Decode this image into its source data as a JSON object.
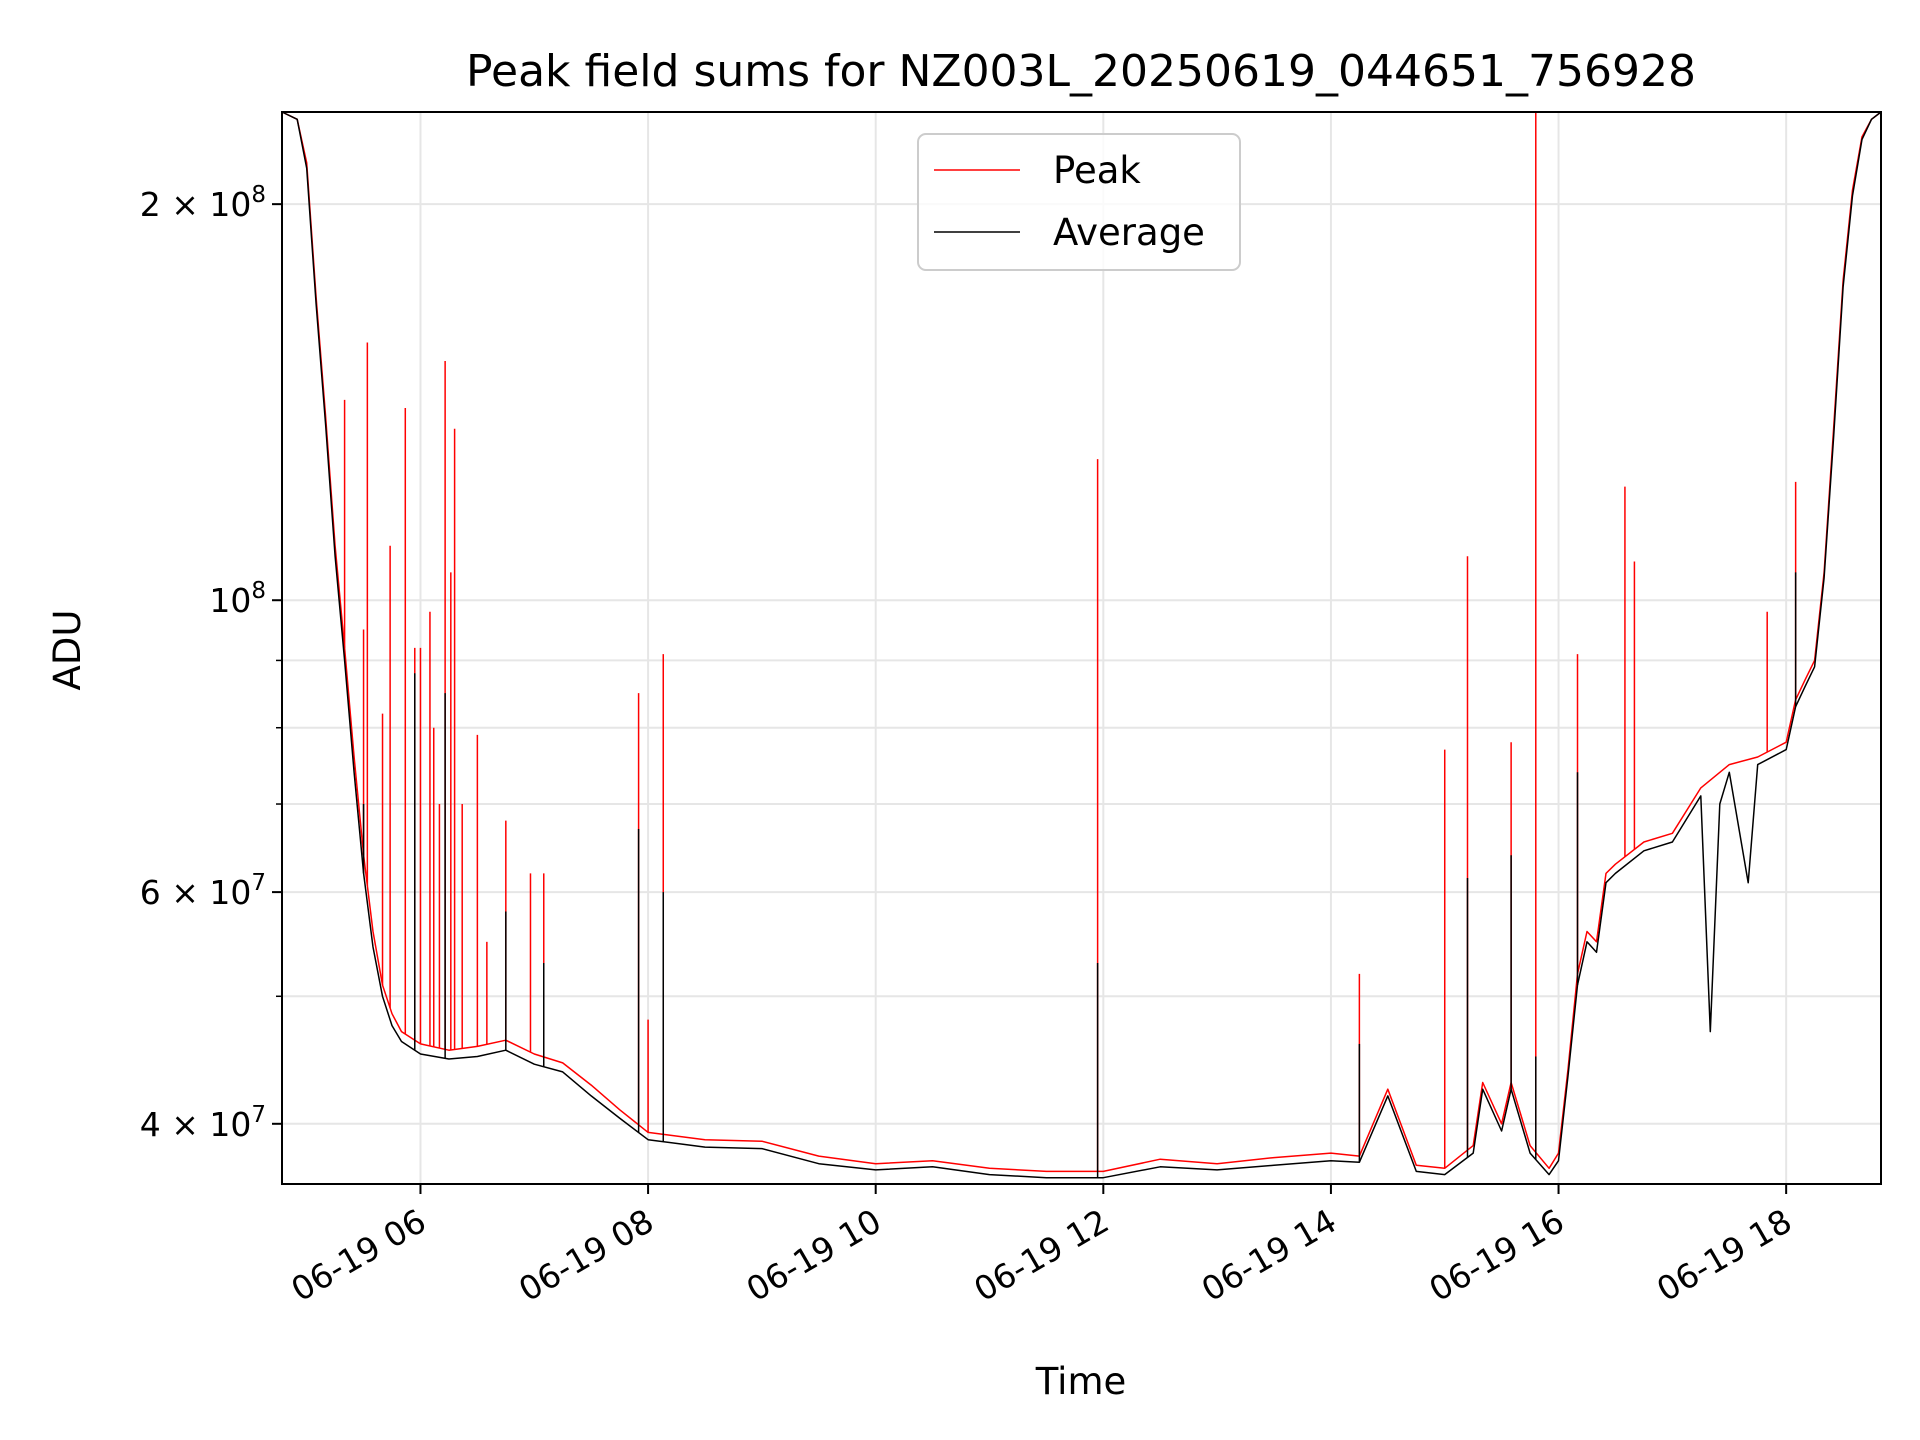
{
  "chart_data": {
    "type": "line",
    "title": "Peak field sums for NZ003L_20250619_044651_756928",
    "xlabel": "Time",
    "ylabel": "ADU",
    "y_scale": "log",
    "ylim": [
      36000000,
      235000000
    ],
    "xlim": [
      "2025-06-19 04:47",
      "2025-06-19 18:50"
    ],
    "grid": true,
    "legend_position": "upper center",
    "x_ticks": [
      {
        "value": "2025-06-19 06:00",
        "label": "06-19 06"
      },
      {
        "value": "2025-06-19 08:00",
        "label": "06-19 08"
      },
      {
        "value": "2025-06-19 10:00",
        "label": "06-19 10"
      },
      {
        "value": "2025-06-19 12:00",
        "label": "06-19 12"
      },
      {
        "value": "2025-06-19 14:00",
        "label": "06-19 14"
      },
      {
        "value": "2025-06-19 16:00",
        "label": "06-19 16"
      },
      {
        "value": "2025-06-19 18:00",
        "label": "06-19 18"
      }
    ],
    "y_ticks": [
      {
        "value": 40000000,
        "base": "4 × 10",
        "exp": "7"
      },
      {
        "value": 60000000,
        "base": "6 × 10",
        "exp": "7"
      },
      {
        "value": 100000000,
        "base": "10",
        "exp": "8"
      },
      {
        "value": 200000000,
        "base": "2 × 10",
        "exp": "8"
      }
    ],
    "y_minor_ticks": [
      50000000,
      70000000,
      80000000,
      90000000
    ],
    "series": [
      {
        "name": "Peak",
        "color": "#ff0000",
        "points": [
          [
            "2025-06-19 04:47",
            235000000
          ],
          [
            "2025-06-19 04:55",
            232000000
          ],
          [
            "2025-06-19 05:00",
            215000000
          ],
          [
            "2025-06-19 05:05",
            170000000
          ],
          [
            "2025-06-19 05:10",
            138000000
          ],
          [
            "2025-06-19 05:15",
            110000000
          ],
          [
            "2025-06-19 05:20",
            92000000
          ],
          [
            "2025-06-19 05:25",
            76000000
          ],
          [
            "2025-06-19 05:30",
            64000000
          ],
          [
            "2025-06-19 05:35",
            56000000
          ],
          [
            "2025-06-19 05:40",
            51000000
          ],
          [
            "2025-06-19 05:45",
            48500000
          ],
          [
            "2025-06-19 05:50",
            47000000
          ],
          [
            "2025-06-19 06:00",
            46000000
          ],
          [
            "2025-06-19 06:15",
            45500000
          ],
          [
            "2025-06-19 06:30",
            45800000
          ],
          [
            "2025-06-19 06:45",
            46300000
          ],
          [
            "2025-06-19 07:00",
            45200000
          ],
          [
            "2025-06-19 07:15",
            44500000
          ],
          [
            "2025-06-19 07:30",
            42800000
          ],
          [
            "2025-06-19 07:45",
            41000000
          ],
          [
            "2025-06-19 08:00",
            39400000
          ],
          [
            "2025-06-19 08:30",
            38900000
          ],
          [
            "2025-06-19 09:00",
            38800000
          ],
          [
            "2025-06-19 09:30",
            37800000
          ],
          [
            "2025-06-19 10:00",
            37300000
          ],
          [
            "2025-06-19 10:30",
            37500000
          ],
          [
            "2025-06-19 11:00",
            37000000
          ],
          [
            "2025-06-19 11:30",
            36800000
          ],
          [
            "2025-06-19 12:00",
            36800000
          ],
          [
            "2025-06-19 12:30",
            37600000
          ],
          [
            "2025-06-19 13:00",
            37300000
          ],
          [
            "2025-06-19 13:30",
            37700000
          ],
          [
            "2025-06-19 14:00",
            38000000
          ],
          [
            "2025-06-19 14:15",
            37800000
          ],
          [
            "2025-06-19 14:30",
            42500000
          ],
          [
            "2025-06-19 14:45",
            37200000
          ],
          [
            "2025-06-19 15:00",
            37000000
          ],
          [
            "2025-06-19 15:15",
            38500000
          ],
          [
            "2025-06-19 15:20",
            43000000
          ],
          [
            "2025-06-19 15:30",
            40000000
          ],
          [
            "2025-06-19 15:35",
            43000000
          ],
          [
            "2025-06-19 15:45",
            38500000
          ],
          [
            "2025-06-19 15:55",
            37000000
          ],
          [
            "2025-06-19 16:00",
            38000000
          ],
          [
            "2025-06-19 16:05",
            44000000
          ],
          [
            "2025-06-19 16:10",
            52000000
          ],
          [
            "2025-06-19 16:15",
            56000000
          ],
          [
            "2025-06-19 16:20",
            55000000
          ],
          [
            "2025-06-19 16:25",
            62000000
          ],
          [
            "2025-06-19 16:30",
            63000000
          ],
          [
            "2025-06-19 16:45",
            65500000
          ],
          [
            "2025-06-19 17:00",
            66500000
          ],
          [
            "2025-06-19 17:15",
            72000000
          ],
          [
            "2025-06-19 17:30",
            75000000
          ],
          [
            "2025-06-19 17:45",
            76000000
          ],
          [
            "2025-06-19 18:00",
            78000000
          ],
          [
            "2025-06-19 18:05",
            84000000
          ],
          [
            "2025-06-19 18:10",
            87000000
          ],
          [
            "2025-06-19 18:15",
            90000000
          ],
          [
            "2025-06-19 18:20",
            105000000
          ],
          [
            "2025-06-19 18:25",
            135000000
          ],
          [
            "2025-06-19 18:30",
            175000000
          ],
          [
            "2025-06-19 18:35",
            205000000
          ],
          [
            "2025-06-19 18:40",
            225000000
          ],
          [
            "2025-06-19 18:45",
            232000000
          ],
          [
            "2025-06-19 18:50",
            235000000
          ]
        ],
        "spikes": [
          [
            "2025-06-19 05:20",
            142000000
          ],
          [
            "2025-06-19 05:30",
            95000000
          ],
          [
            "2025-06-19 05:32",
            157000000
          ],
          [
            "2025-06-19 05:40",
            82000000
          ],
          [
            "2025-06-19 05:44",
            110000000
          ],
          [
            "2025-06-19 05:52",
            140000000
          ],
          [
            "2025-06-19 05:57",
            92000000
          ],
          [
            "2025-06-19 06:00",
            92000000
          ],
          [
            "2025-06-19 06:05",
            98000000
          ],
          [
            "2025-06-19 06:07",
            80000000
          ],
          [
            "2025-06-19 06:10",
            70000000
          ],
          [
            "2025-06-19 06:13",
            152000000
          ],
          [
            "2025-06-19 06:16",
            105000000
          ],
          [
            "2025-06-19 06:18",
            135000000
          ],
          [
            "2025-06-19 06:22",
            70000000
          ],
          [
            "2025-06-19 06:30",
            79000000
          ],
          [
            "2025-06-19 06:35",
            55000000
          ],
          [
            "2025-06-19 06:45",
            68000000
          ],
          [
            "2025-06-19 06:58",
            62000000
          ],
          [
            "2025-06-19 07:05",
            62000000
          ],
          [
            "2025-06-19 07:55",
            85000000
          ],
          [
            "2025-06-19 08:00",
            48000000
          ],
          [
            "2025-06-19 08:08",
            91000000
          ],
          [
            "2025-06-19 11:57",
            128000000
          ],
          [
            "2025-06-19 14:15",
            52000000
          ],
          [
            "2025-06-19 15:00",
            77000000
          ],
          [
            "2025-06-19 15:12",
            108000000
          ],
          [
            "2025-06-19 15:35",
            78000000
          ],
          [
            "2025-06-19 15:48",
            235000000
          ],
          [
            "2025-06-19 16:10",
            91000000
          ],
          [
            "2025-06-19 16:35",
            122000000
          ],
          [
            "2025-06-19 16:40",
            107000000
          ],
          [
            "2025-06-19 17:50",
            98000000
          ],
          [
            "2025-06-19 18:05",
            123000000
          ]
        ]
      },
      {
        "name": "Average",
        "color": "#000000",
        "points": [
          [
            "2025-06-19 04:47",
            235000000
          ],
          [
            "2025-06-19 04:55",
            232000000
          ],
          [
            "2025-06-19 05:00",
            213000000
          ],
          [
            "2025-06-19 05:05",
            168000000
          ],
          [
            "2025-06-19 05:10",
            136000000
          ],
          [
            "2025-06-19 05:15",
            108000000
          ],
          [
            "2025-06-19 05:20",
            90000000
          ],
          [
            "2025-06-19 05:25",
            74000000
          ],
          [
            "2025-06-19 05:30",
            62000000
          ],
          [
            "2025-06-19 05:35",
            54500000
          ],
          [
            "2025-06-19 05:40",
            50000000
          ],
          [
            "2025-06-19 05:45",
            47500000
          ],
          [
            "2025-06-19 05:50",
            46200000
          ],
          [
            "2025-06-19 06:00",
            45200000
          ],
          [
            "2025-06-19 06:15",
            44800000
          ],
          [
            "2025-06-19 06:30",
            45000000
          ],
          [
            "2025-06-19 06:45",
            45500000
          ],
          [
            "2025-06-19 07:00",
            44400000
          ],
          [
            "2025-06-19 07:15",
            43800000
          ],
          [
            "2025-06-19 07:30",
            42000000
          ],
          [
            "2025-06-19 07:45",
            40400000
          ],
          [
            "2025-06-19 08:00",
            38900000
          ],
          [
            "2025-06-19 08:30",
            38400000
          ],
          [
            "2025-06-19 09:00",
            38300000
          ],
          [
            "2025-06-19 09:30",
            37300000
          ],
          [
            "2025-06-19 10:00",
            36900000
          ],
          [
            "2025-06-19 10:30",
            37100000
          ],
          [
            "2025-06-19 11:00",
            36600000
          ],
          [
            "2025-06-19 11:30",
            36400000
          ],
          [
            "2025-06-19 12:00",
            36400000
          ],
          [
            "2025-06-19 12:30",
            37100000
          ],
          [
            "2025-06-19 13:00",
            36900000
          ],
          [
            "2025-06-19 13:30",
            37200000
          ],
          [
            "2025-06-19 14:00",
            37500000
          ],
          [
            "2025-06-19 14:15",
            37400000
          ],
          [
            "2025-06-19 14:30",
            42000000
          ],
          [
            "2025-06-19 14:45",
            36800000
          ],
          [
            "2025-06-19 15:00",
            36600000
          ],
          [
            "2025-06-19 15:15",
            38000000
          ],
          [
            "2025-06-19 15:20",
            42500000
          ],
          [
            "2025-06-19 15:30",
            39500000
          ],
          [
            "2025-06-19 15:35",
            42500000
          ],
          [
            "2025-06-19 15:45",
            38000000
          ],
          [
            "2025-06-19 15:55",
            36600000
          ],
          [
            "2025-06-19 16:00",
            37500000
          ],
          [
            "2025-06-19 16:05",
            43500000
          ],
          [
            "2025-06-19 16:10",
            51000000
          ],
          [
            "2025-06-19 16:15",
            55000000
          ],
          [
            "2025-06-19 16:20",
            54000000
          ],
          [
            "2025-06-19 16:25",
            61000000
          ],
          [
            "2025-06-19 16:30",
            62000000
          ],
          [
            "2025-06-19 16:45",
            64500000
          ],
          [
            "2025-06-19 17:00",
            65500000
          ],
          [
            "2025-06-19 17:15",
            71000000
          ],
          [
            "2025-06-19 17:20",
            47000000
          ],
          [
            "2025-06-19 17:25",
            70000000
          ],
          [
            "2025-06-19 17:30",
            74000000
          ],
          [
            "2025-06-19 17:40",
            61000000
          ],
          [
            "2025-06-19 17:45",
            75000000
          ],
          [
            "2025-06-19 18:00",
            77000000
          ],
          [
            "2025-06-19 18:05",
            83000000
          ],
          [
            "2025-06-19 18:10",
            86000000
          ],
          [
            "2025-06-19 18:15",
            89000000
          ],
          [
            "2025-06-19 18:20",
            104000000
          ],
          [
            "2025-06-19 18:25",
            133000000
          ],
          [
            "2025-06-19 18:30",
            173000000
          ],
          [
            "2025-06-19 18:35",
            203000000
          ],
          [
            "2025-06-19 18:40",
            224000000
          ],
          [
            "2025-06-19 18:45",
            232000000
          ],
          [
            "2025-06-19 18:50",
            235000000
          ]
        ],
        "spikes": [
          [
            "2025-06-19 05:30",
            70000000
          ],
          [
            "2025-06-19 05:57",
            88000000
          ],
          [
            "2025-06-19 06:13",
            85000000
          ],
          [
            "2025-06-19 06:45",
            58000000
          ],
          [
            "2025-06-19 07:05",
            53000000
          ],
          [
            "2025-06-19 07:55",
            67000000
          ],
          [
            "2025-06-19 08:08",
            60000000
          ],
          [
            "2025-06-19 11:57",
            53000000
          ],
          [
            "2025-06-19 14:15",
            46000000
          ],
          [
            "2025-06-19 15:12",
            61500000
          ],
          [
            "2025-06-19 15:35",
            64000000
          ],
          [
            "2025-06-19 15:48",
            45000000
          ],
          [
            "2025-06-19 16:10",
            74000000
          ],
          [
            "2025-06-19 18:05",
            105000000
          ]
        ]
      }
    ]
  }
}
